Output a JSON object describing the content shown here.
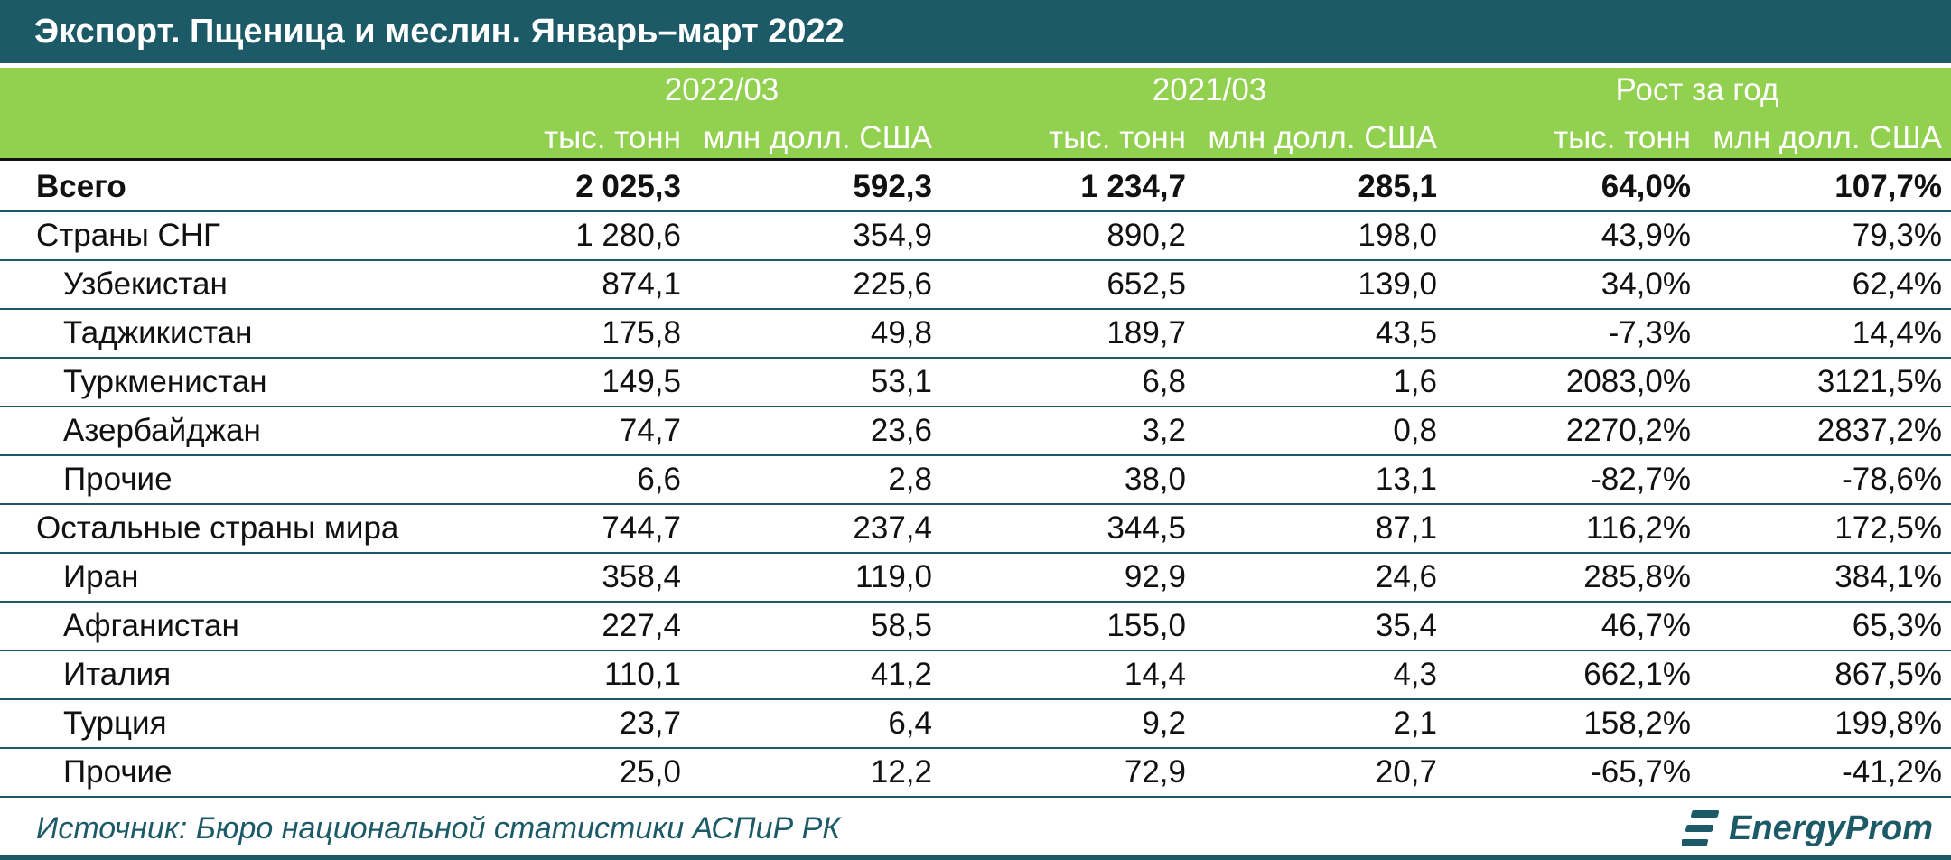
{
  "title": "Экспорт. Пщеница и меслин. Январь–март 2022",
  "groups": [
    "2022/03",
    "2021/03",
    "Рост за год"
  ],
  "units": [
    "тыс. тонн",
    "млн долл. США",
    "тыс. тонн",
    "млн долл. США",
    "тыс. тонн",
    "млн долл. США"
  ],
  "rows": [
    {
      "name": "Всего",
      "values": [
        "2 025,3",
        "592,3",
        "1 234,7",
        "285,1",
        "64,0%",
        "107,7%"
      ]
    },
    {
      "name": "Страны СНГ",
      "values": [
        "1 280,6",
        "354,9",
        "890,2",
        "198,0",
        "43,9%",
        "79,3%"
      ]
    },
    {
      "name": "Узбекистан",
      "values": [
        "874,1",
        "225,6",
        "652,5",
        "139,0",
        "34,0%",
        "62,4%"
      ]
    },
    {
      "name": "Таджикистан",
      "values": [
        "175,8",
        "49,8",
        "189,7",
        "43,5",
        "-7,3%",
        "14,4%"
      ]
    },
    {
      "name": "Туркменистан",
      "values": [
        "149,5",
        "53,1",
        "6,8",
        "1,6",
        "2083,0%",
        "3121,5%"
      ]
    },
    {
      "name": "Азербайджан",
      "values": [
        "74,7",
        "23,6",
        "3,2",
        "0,8",
        "2270,2%",
        "2837,2%"
      ]
    },
    {
      "name": "Прочие",
      "values": [
        "6,6",
        "2,8",
        "38,0",
        "13,1",
        "-82,7%",
        "-78,6%"
      ]
    },
    {
      "name": "Остальные страны мира",
      "values": [
        "744,7",
        "237,4",
        "344,5",
        "87,1",
        "116,2%",
        "172,5%"
      ]
    },
    {
      "name": "Иран",
      "values": [
        "358,4",
        "119,0",
        "92,9",
        "24,6",
        "285,8%",
        "384,1%"
      ]
    },
    {
      "name": "Афганистан",
      "values": [
        "227,4",
        "58,5",
        "155,0",
        "35,4",
        "46,7%",
        "65,3%"
      ]
    },
    {
      "name": "Италия",
      "values": [
        "110,1",
        "41,2",
        "14,4",
        "4,3",
        "662,1%",
        "867,5%"
      ]
    },
    {
      "name": "Турция",
      "values": [
        "23,7",
        "6,4",
        "9,2",
        "2,1",
        "158,2%",
        "199,8%"
      ]
    },
    {
      "name": "Прочие",
      "values": [
        "25,0",
        "12,2",
        "72,9",
        "20,7",
        "-65,7%",
        "-41,2%"
      ]
    }
  ],
  "source": "Источник: Бюро национальной статистики АСПиР РК",
  "logo": "EnergyProm",
  "colors": {
    "header": "#1c5a67",
    "band": "#92d050"
  },
  "chart_data": {
    "type": "table",
    "title": "Экспорт. Пщеница и меслин. Январь–март 2022",
    "column_groups": [
      "2022/03",
      "2021/03",
      "Рост за год"
    ],
    "columns": [
      "тыс. тонн",
      "млн долл. США",
      "тыс. тонн",
      "млн долл. США",
      "тыс. тонн",
      "млн долл. США"
    ],
    "row_labels": [
      "Всего",
      "Страны СНГ",
      "Узбекистан",
      "Таджикистан",
      "Туркменистан",
      "Азербайджан",
      "Прочие",
      "Остальные страны мира",
      "Иран",
      "Афганистан",
      "Италия",
      "Турция",
      "Прочие"
    ]
  }
}
